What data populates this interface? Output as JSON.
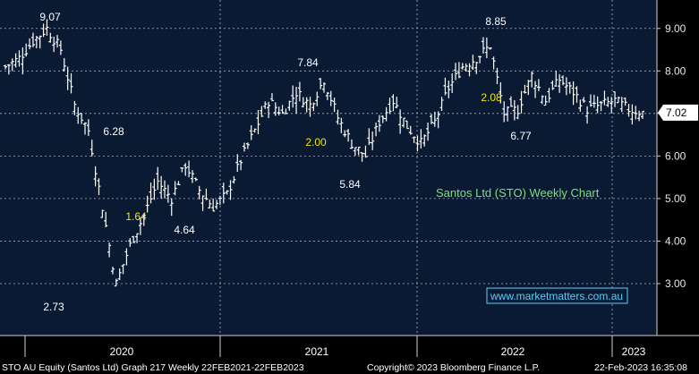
{
  "chart_data": {
    "type": "ohlc",
    "title": "Santos Ltd (STO) Weekly Chart",
    "source_url": "www.marketmatters.com.au",
    "ylim": [
      2.2,
      9.5
    ],
    "y_ticks": [
      "3.00",
      "4.00",
      "5.00",
      "6.00",
      "7.00",
      "8.00",
      "9.00"
    ],
    "x_labels": [
      "2020",
      "2021",
      "2022",
      "2023"
    ],
    "last_price": "7.02",
    "grid": true,
    "annotations": [
      {
        "text": "9.07",
        "x": "2019-07",
        "y": 9.07,
        "color": "#ffffff"
      },
      {
        "text": "2.73",
        "x": "2020-03",
        "y": 2.73,
        "color": "#ffffff"
      },
      {
        "text": "6.28",
        "x": "2020-01",
        "y": 6.28,
        "color": "#ffffff"
      },
      {
        "text": "1.64",
        "x": "2020-01",
        "y": 5.0,
        "color": "#f5e400"
      },
      {
        "text": "4.64",
        "x": "2020-10",
        "y": 4.64,
        "color": "#ffffff"
      },
      {
        "text": "7.84",
        "x": "2021-03",
        "y": 7.84,
        "color": "#ffffff"
      },
      {
        "text": "2.00",
        "x": "2021-03",
        "y": 6.5,
        "color": "#f5e400"
      },
      {
        "text": "5.84",
        "x": "2021-08",
        "y": 5.84,
        "color": "#ffffff"
      },
      {
        "text": "8.85",
        "x": "2022-03",
        "y": 8.85,
        "color": "#ffffff"
      },
      {
        "text": "2.08",
        "x": "2022-03",
        "y": 7.4,
        "color": "#f5e400"
      },
      {
        "text": "6.77",
        "x": "2022-07",
        "y": 6.77,
        "color": "#ffffff"
      }
    ],
    "series": [
      {
        "name": "STO AU Equity",
        "x": [
          "2019-04",
          "2019-05",
          "2019-06",
          "2019-07",
          "2019-08",
          "2019-09",
          "2019-10",
          "2019-11",
          "2019-12",
          "2020-01",
          "2020-02",
          "2020-03",
          "2020-04",
          "2020-05",
          "2020-06",
          "2020-07",
          "2020-08",
          "2020-09",
          "2020-10",
          "2020-11",
          "2020-12",
          "2021-01",
          "2021-02",
          "2021-03",
          "2021-04",
          "2021-05",
          "2021-06",
          "2021-07",
          "2021-08",
          "2021-09",
          "2021-10",
          "2021-11",
          "2021-12",
          "2022-01",
          "2022-02",
          "2022-03",
          "2022-04",
          "2022-05",
          "2022-06",
          "2022-07",
          "2022-08",
          "2022-09",
          "2022-10",
          "2022-11",
          "2022-12",
          "2023-01",
          "2023-02"
        ],
        "close": [
          8.1,
          8.3,
          8.7,
          9.0,
          8.5,
          7.2,
          6.6,
          4.8,
          3.0,
          3.9,
          4.6,
          5.4,
          5.0,
          5.8,
          5.2,
          4.8,
          5.1,
          5.9,
          6.6,
          7.3,
          7.0,
          7.5,
          7.2,
          7.8,
          6.9,
          6.3,
          6.0,
          6.8,
          7.3,
          6.7,
          6.3,
          6.8,
          7.6,
          8.1,
          8.3,
          8.6,
          7.0,
          7.1,
          7.9,
          7.3,
          7.8,
          7.5,
          7.1,
          7.2,
          7.3,
          7.1,
          7.02
        ]
      }
    ]
  },
  "footer": {
    "left": "STO AU Equity (Santos Ltd) Graph 217  Weekly 22FEB2021-22FEB2023",
    "center": "Copyright© 2023 Bloomberg Finance L.P.",
    "right": "22-Feb-2023 16:35:08"
  },
  "colors": {
    "background": "#0a1a33",
    "grid": "#a8b0c0",
    "bars": "#ffffff",
    "annotation_white": "#ffffff",
    "annotation_yellow": "#f5e400",
    "title": "#7ee07e",
    "url": "#5ad0ff"
  }
}
